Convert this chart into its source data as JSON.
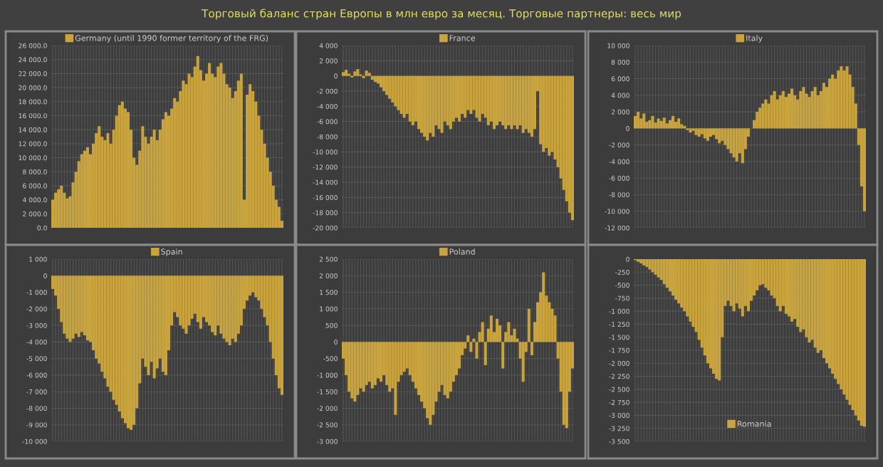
{
  "chart_data": [
    {
      "type": "bar",
      "title": "Торговый баланс стран Европы в млн евро за месяц. Торговые партнеры: весь мир",
      "tick_labels": "y",
      "grid": true,
      "legend": "top",
      "categories": [
        null,
        null,
        null,
        null,
        null,
        null,
        null,
        null,
        null,
        null,
        null,
        null,
        null,
        null,
        null,
        null,
        null,
        null,
        null,
        null,
        null,
        null,
        null,
        null,
        null,
        null,
        null,
        null,
        null,
        null,
        null,
        null,
        null,
        null,
        null,
        null,
        null,
        null,
        null,
        null,
        null,
        null,
        null,
        null,
        null,
        null,
        null,
        null,
        null,
        null,
        null,
        null,
        null,
        null,
        null,
        null,
        null,
        null,
        null,
        null,
        null,
        null,
        null,
        null,
        null,
        null,
        null,
        null,
        null,
        null,
        null,
        null,
        null,
        null,
        null,
        null,
        null,
        null,
        null,
        null
      ],
      "ylim": [
        0,
        26000
      ],
      "yticks": [
        {
          "value": 0,
          "label": "0.0"
        },
        {
          "value": 2000,
          "label": "2 000.0"
        },
        {
          "value": 4000,
          "label": "4 000.0"
        },
        {
          "value": 6000,
          "label": "6 000.0"
        },
        {
          "value": 8000,
          "label": "8 000.0"
        },
        {
          "value": 10000,
          "label": "10 000.0"
        },
        {
          "value": 12000,
          "label": "12 000.0"
        },
        {
          "value": 14000,
          "label": "14 000.0"
        },
        {
          "value": 16000,
          "label": "16 000.0"
        },
        {
          "value": 18000,
          "label": "18 000.0"
        },
        {
          "value": 20000,
          "label": "20 000.0"
        },
        {
          "value": 22000,
          "label": "22 000.0"
        },
        {
          "value": 24000,
          "label": "24 000.0"
        },
        {
          "value": 26000,
          "label": "26 000.0"
        }
      ],
      "series": [
        {
          "name": "Germany (until 1990 former territory of the FRG)",
          "color": "#c9a43e",
          "values": [
            4000,
            5000,
            5500,
            6000,
            5000,
            4200,
            4500,
            6500,
            8000,
            9500,
            10500,
            11000,
            11500,
            10500,
            12000,
            13500,
            14500,
            13000,
            12500,
            13500,
            12000,
            14000,
            16000,
            17500,
            18000,
            17000,
            16500,
            14000,
            10000,
            9000,
            11000,
            14500,
            13000,
            12000,
            13000,
            14000,
            12500,
            14000,
            15500,
            16500,
            16000,
            17000,
            18500,
            18000,
            19500,
            21000,
            20500,
            22000,
            21500,
            23000,
            24500,
            22500,
            21000,
            22000,
            23500,
            22000,
            21500,
            23000,
            23500,
            22000,
            20500,
            20000,
            18500,
            19500,
            21000,
            22000,
            4000,
            19000,
            20500,
            19500,
            18000,
            16000,
            14000,
            12000,
            10000,
            8000,
            6000,
            4000,
            3000,
            1000
          ]
        }
      ]
    },
    {
      "type": "bar",
      "tick_labels": "y",
      "grid": true,
      "legend": "top",
      "categories": [
        null,
        null,
        null,
        null,
        null,
        null,
        null,
        null,
        null,
        null,
        null,
        null,
        null,
        null,
        null,
        null,
        null,
        null,
        null,
        null,
        null,
        null,
        null,
        null,
        null,
        null,
        null,
        null,
        null,
        null,
        null,
        null,
        null,
        null,
        null,
        null,
        null,
        null,
        null,
        null,
        null,
        null,
        null,
        null,
        null,
        null,
        null,
        null,
        null,
        null,
        null,
        null,
        null,
        null,
        null,
        null,
        null,
        null,
        null,
        null,
        null,
        null,
        null,
        null,
        null,
        null,
        null,
        null,
        null,
        null,
        null,
        null,
        null,
        null,
        null,
        null,
        null,
        null,
        null,
        null
      ],
      "ylim": [
        -20000,
        4000
      ],
      "yticks": [
        {
          "value": 4000,
          "label": "4 000"
        },
        {
          "value": 2000,
          "label": "2 000"
        },
        {
          "value": 0,
          "label": "0"
        },
        {
          "value": -2000,
          "label": "-2 000"
        },
        {
          "value": -4000,
          "label": "-4 000"
        },
        {
          "value": -6000,
          "label": "-6 000"
        },
        {
          "value": -8000,
          "label": "-8 000"
        },
        {
          "value": -10000,
          "label": "-10 000"
        },
        {
          "value": -12000,
          "label": "-12 000"
        },
        {
          "value": -14000,
          "label": "-14 000"
        },
        {
          "value": -16000,
          "label": "-16 000"
        },
        {
          "value": -18000,
          "label": "-18 000"
        },
        {
          "value": -20000,
          "label": "-20 000"
        }
      ],
      "series": [
        {
          "name": "France",
          "color": "#c9a43e",
          "values": [
            500,
            800,
            300,
            -200,
            600,
            900,
            200,
            -300,
            700,
            400,
            -500,
            -800,
            -1000,
            -1500,
            -2000,
            -2500,
            -3000,
            -3500,
            -4000,
            -4500,
            -5000,
            -5500,
            -5000,
            -6000,
            -6500,
            -6000,
            -7000,
            -7500,
            -8000,
            -8500,
            -7500,
            -8000,
            -6500,
            -7000,
            -7500,
            -6000,
            -6500,
            -7000,
            -6000,
            -5500,
            -6000,
            -5000,
            -5500,
            -4500,
            -5000,
            -4500,
            -5500,
            -6000,
            -5000,
            -5500,
            -6500,
            -6000,
            -7000,
            -6500,
            -6000,
            -6500,
            -7000,
            -6500,
            -7000,
            -6500,
            -7000,
            -6500,
            -7500,
            -7000,
            -7500,
            -8000,
            -7000,
            -2000,
            -9000,
            -10000,
            -9500,
            -10500,
            -10000,
            -11000,
            -12000,
            -13500,
            -15000,
            -16500,
            -18000,
            -19000
          ]
        }
      ]
    },
    {
      "type": "bar",
      "tick_labels": "y",
      "grid": true,
      "legend": "top",
      "categories": [
        null,
        null,
        null,
        null,
        null,
        null,
        null,
        null,
        null,
        null,
        null,
        null,
        null,
        null,
        null,
        null,
        null,
        null,
        null,
        null,
        null,
        null,
        null,
        null,
        null,
        null,
        null,
        null,
        null,
        null,
        null,
        null,
        null,
        null,
        null,
        null,
        null,
        null,
        null,
        null,
        null,
        null,
        null,
        null,
        null,
        null,
        null,
        null,
        null,
        null,
        null,
        null,
        null,
        null,
        null,
        null,
        null,
        null,
        null,
        null,
        null,
        null,
        null,
        null,
        null,
        null,
        null,
        null,
        null,
        null,
        null,
        null,
        null,
        null,
        null,
        null,
        null,
        null,
        null,
        null
      ],
      "ylim": [
        -12000,
        10000
      ],
      "yticks": [
        {
          "value": 10000,
          "label": "10 000"
        },
        {
          "value": 8000,
          "label": "8 000"
        },
        {
          "value": 6000,
          "label": "6 000"
        },
        {
          "value": 4000,
          "label": "4 000"
        },
        {
          "value": 2000,
          "label": "2 000"
        },
        {
          "value": 0,
          "label": "0"
        },
        {
          "value": -2000,
          "label": "-2 000"
        },
        {
          "value": -4000,
          "label": "-4 000"
        },
        {
          "value": -6000,
          "label": "-6 000"
        },
        {
          "value": -8000,
          "label": "-8 000"
        },
        {
          "value": -10000,
          "label": "-10 000"
        },
        {
          "value": -12000,
          "label": "-12 000"
        }
      ],
      "series": [
        {
          "name": "Italy",
          "color": "#c9a43e",
          "values": [
            1500,
            2000,
            1200,
            1800,
            800,
            1000,
            1500,
            700,
            1200,
            900,
            1300,
            600,
            1000,
            1500,
            800,
            1200,
            500,
            300,
            -200,
            -500,
            -300,
            -800,
            -1000,
            -700,
            -1200,
            -1500,
            -1000,
            -800,
            -1300,
            -1800,
            -1500,
            -2000,
            -2500,
            -3000,
            -3500,
            -4000,
            -3000,
            -4200,
            -2500,
            -1000,
            0,
            1000,
            2000,
            2500,
            3000,
            3500,
            3000,
            4000,
            4500,
            3500,
            4000,
            4500,
            3800,
            4200,
            4800,
            4000,
            3500,
            4500,
            5000,
            4200,
            3800,
            4500,
            5000,
            4000,
            4500,
            5500,
            5000,
            6000,
            6500,
            6000,
            7000,
            7500,
            7000,
            7500,
            6500,
            5000,
            3000,
            -2000,
            -7000,
            -10000
          ]
        }
      ]
    },
    {
      "type": "bar",
      "tick_labels": "y",
      "grid": true,
      "legend": "top",
      "categories": [
        null,
        null,
        null,
        null,
        null,
        null,
        null,
        null,
        null,
        null,
        null,
        null,
        null,
        null,
        null,
        null,
        null,
        null,
        null,
        null,
        null,
        null,
        null,
        null,
        null,
        null,
        null,
        null,
        null,
        null,
        null,
        null,
        null,
        null,
        null,
        null,
        null,
        null,
        null,
        null,
        null,
        null,
        null,
        null,
        null,
        null,
        null,
        null,
        null,
        null,
        null,
        null,
        null,
        null,
        null,
        null,
        null,
        null,
        null,
        null,
        null,
        null,
        null,
        null,
        null,
        null,
        null,
        null,
        null,
        null,
        null,
        null,
        null,
        null,
        null,
        null,
        null,
        null,
        null,
        null
      ],
      "ylim": [
        -10000,
        1000
      ],
      "yticks": [
        {
          "value": 1000,
          "label": "1 000"
        },
        {
          "value": 0,
          "label": "0"
        },
        {
          "value": -1000,
          "label": "-1 000"
        },
        {
          "value": -2000,
          "label": "-2 000"
        },
        {
          "value": -3000,
          "label": "-3 000"
        },
        {
          "value": -4000,
          "label": "-4 000"
        },
        {
          "value": -5000,
          "label": "-5 000"
        },
        {
          "value": -6000,
          "label": "-6 000"
        },
        {
          "value": -7000,
          "label": "-7 000"
        },
        {
          "value": -8000,
          "label": "-8 000"
        },
        {
          "value": -9000,
          "label": "-9 000"
        },
        {
          "value": -10000,
          "label": "-10 000"
        }
      ],
      "series": [
        {
          "name": "Spain",
          "color": "#c9a43e",
          "values": [
            -800,
            -1200,
            -2000,
            -2800,
            -3500,
            -3800,
            -4000,
            -3800,
            -3500,
            -3700,
            -3400,
            -3600,
            -3900,
            -4000,
            -4500,
            -5000,
            -5300,
            -5800,
            -6200,
            -6700,
            -7000,
            -7500,
            -7800,
            -8200,
            -8600,
            -8900,
            -9200,
            -9300,
            -9000,
            -8000,
            -6500,
            -5000,
            -5500,
            -6000,
            -5200,
            -6200,
            -5600,
            -5000,
            -5800,
            -6000,
            -4500,
            -3000,
            -2200,
            -2500,
            -3000,
            -3200,
            -3500,
            -3000,
            -2600,
            -2300,
            -2800,
            -3200,
            -2500,
            -2800,
            -3000,
            -3400,
            -3600,
            -3000,
            -3500,
            -3800,
            -4000,
            -4200,
            -3800,
            -4000,
            -3500,
            -3000,
            -2000,
            -1500,
            -1200,
            -1000,
            -1300,
            -1500,
            -2000,
            -2500,
            -3000,
            -4000,
            -5000,
            -6000,
            -6800,
            -7200
          ]
        }
      ]
    },
    {
      "type": "bar",
      "tick_labels": "y",
      "grid": true,
      "legend": "top",
      "categories": [
        null,
        null,
        null,
        null,
        null,
        null,
        null,
        null,
        null,
        null,
        null,
        null,
        null,
        null,
        null,
        null,
        null,
        null,
        null,
        null,
        null,
        null,
        null,
        null,
        null,
        null,
        null,
        null,
        null,
        null,
        null,
        null,
        null,
        null,
        null,
        null,
        null,
        null,
        null,
        null,
        null,
        null,
        null,
        null,
        null,
        null,
        null,
        null,
        null,
        null,
        null,
        null,
        null,
        null,
        null,
        null,
        null,
        null,
        null,
        null,
        null,
        null,
        null,
        null,
        null,
        null,
        null,
        null,
        null,
        null,
        null,
        null,
        null,
        null,
        null,
        null,
        null,
        null,
        null,
        null
      ],
      "ylim": [
        -3000,
        2500
      ],
      "yticks": [
        {
          "value": 2500,
          "label": "2 500"
        },
        {
          "value": 2000,
          "label": "2 000"
        },
        {
          "value": 1500,
          "label": "1 500"
        },
        {
          "value": 1000,
          "label": "1 000"
        },
        {
          "value": 500,
          "label": "500"
        },
        {
          "value": 0,
          "label": "0"
        },
        {
          "value": -500,
          "label": "-500"
        },
        {
          "value": -1000,
          "label": "-1 000"
        },
        {
          "value": -1500,
          "label": "-1 500"
        },
        {
          "value": -2000,
          "label": "-2 000"
        },
        {
          "value": -2500,
          "label": "-2 500"
        },
        {
          "value": -3000,
          "label": "-3 000"
        }
      ],
      "series": [
        {
          "name": "Poland",
          "color": "#c9a43e",
          "values": [
            -500,
            -1000,
            -1500,
            -1700,
            -1800,
            -1600,
            -1400,
            -1500,
            -1300,
            -1200,
            -1400,
            -1300,
            -1100,
            -1200,
            -1000,
            -1300,
            -1500,
            -1400,
            -2200,
            -1200,
            -1000,
            -900,
            -800,
            -1000,
            -1200,
            -1400,
            -1600,
            -1800,
            -2000,
            -2300,
            -2500,
            -2200,
            -1800,
            -1500,
            -1300,
            -1600,
            -1700,
            -1500,
            -1200,
            -1000,
            -800,
            -400,
            -200,
            200,
            -300,
            100,
            -500,
            300,
            600,
            -700,
            400,
            800,
            300,
            700,
            500,
            -800,
            300,
            600,
            200,
            400,
            100,
            -500,
            -1200,
            -300,
            1000,
            -400,
            600,
            1200,
            1500,
            2100,
            1400,
            1200,
            1000,
            800,
            -500,
            -1500,
            -2500,
            -2600,
            -1500,
            -800
          ]
        }
      ]
    },
    {
      "type": "bar",
      "tick_labels": "y",
      "grid": true,
      "legend": "bottom",
      "categories": [
        null,
        null,
        null,
        null,
        null,
        null,
        null,
        null,
        null,
        null,
        null,
        null,
        null,
        null,
        null,
        null,
        null,
        null,
        null,
        null,
        null,
        null,
        null,
        null,
        null,
        null,
        null,
        null,
        null,
        null,
        null,
        null,
        null,
        null,
        null,
        null,
        null,
        null,
        null,
        null,
        null,
        null,
        null,
        null,
        null,
        null,
        null,
        null,
        null,
        null,
        null,
        null,
        null,
        null,
        null,
        null,
        null,
        null,
        null,
        null,
        null,
        null,
        null,
        null,
        null,
        null,
        null,
        null,
        null,
        null,
        null,
        null,
        null,
        null,
        null,
        null,
        null,
        null,
        null,
        null
      ],
      "ylim": [
        -3500,
        0
      ],
      "yticks": [
        {
          "value": 0,
          "label": "0"
        },
        {
          "value": -250,
          "label": "-250"
        },
        {
          "value": -500,
          "label": "-500"
        },
        {
          "value": -750,
          "label": "-750"
        },
        {
          "value": -1000,
          "label": "-1 000"
        },
        {
          "value": -1250,
          "label": "-1 250"
        },
        {
          "value": -1500,
          "label": "-1 500"
        },
        {
          "value": -1750,
          "label": "-1 750"
        },
        {
          "value": -2000,
          "label": "-2 000"
        },
        {
          "value": -2250,
          "label": "-2 250"
        },
        {
          "value": -2500,
          "label": "-2 500"
        },
        {
          "value": -2750,
          "label": "-2 750"
        },
        {
          "value": -3000,
          "label": "-3 000"
        },
        {
          "value": -3250,
          "label": "-3 250"
        },
        {
          "value": -3500,
          "label": "-3 500"
        }
      ],
      "series": [
        {
          "name": "Romania",
          "color": "#c9a43e",
          "values": [
            -20,
            -50,
            -80,
            -120,
            -150,
            -200,
            -250,
            -300,
            -350,
            -400,
            -480,
            -550,
            -620,
            -700,
            -780,
            -850,
            -930,
            -1000,
            -1100,
            -1200,
            -1300,
            -1400,
            -1550,
            -1700,
            -1850,
            -2000,
            -2100,
            -2200,
            -2300,
            -2330,
            -1500,
            -900,
            -800,
            -900,
            -1000,
            -850,
            -950,
            -1100,
            -900,
            -1000,
            -800,
            -700,
            -600,
            -500,
            -480,
            -550,
            -600,
            -700,
            -750,
            -900,
            -1000,
            -900,
            -1050,
            -1100,
            -1200,
            -1150,
            -1300,
            -1400,
            -1350,
            -1500,
            -1600,
            -1550,
            -1700,
            -1800,
            -1750,
            -1900,
            -2000,
            -2100,
            -2200,
            -2300,
            -2400,
            -2500,
            -2600,
            -2700,
            -2800,
            -2900,
            -3000,
            -3100,
            -3200,
            -3220
          ]
        }
      ]
    }
  ]
}
